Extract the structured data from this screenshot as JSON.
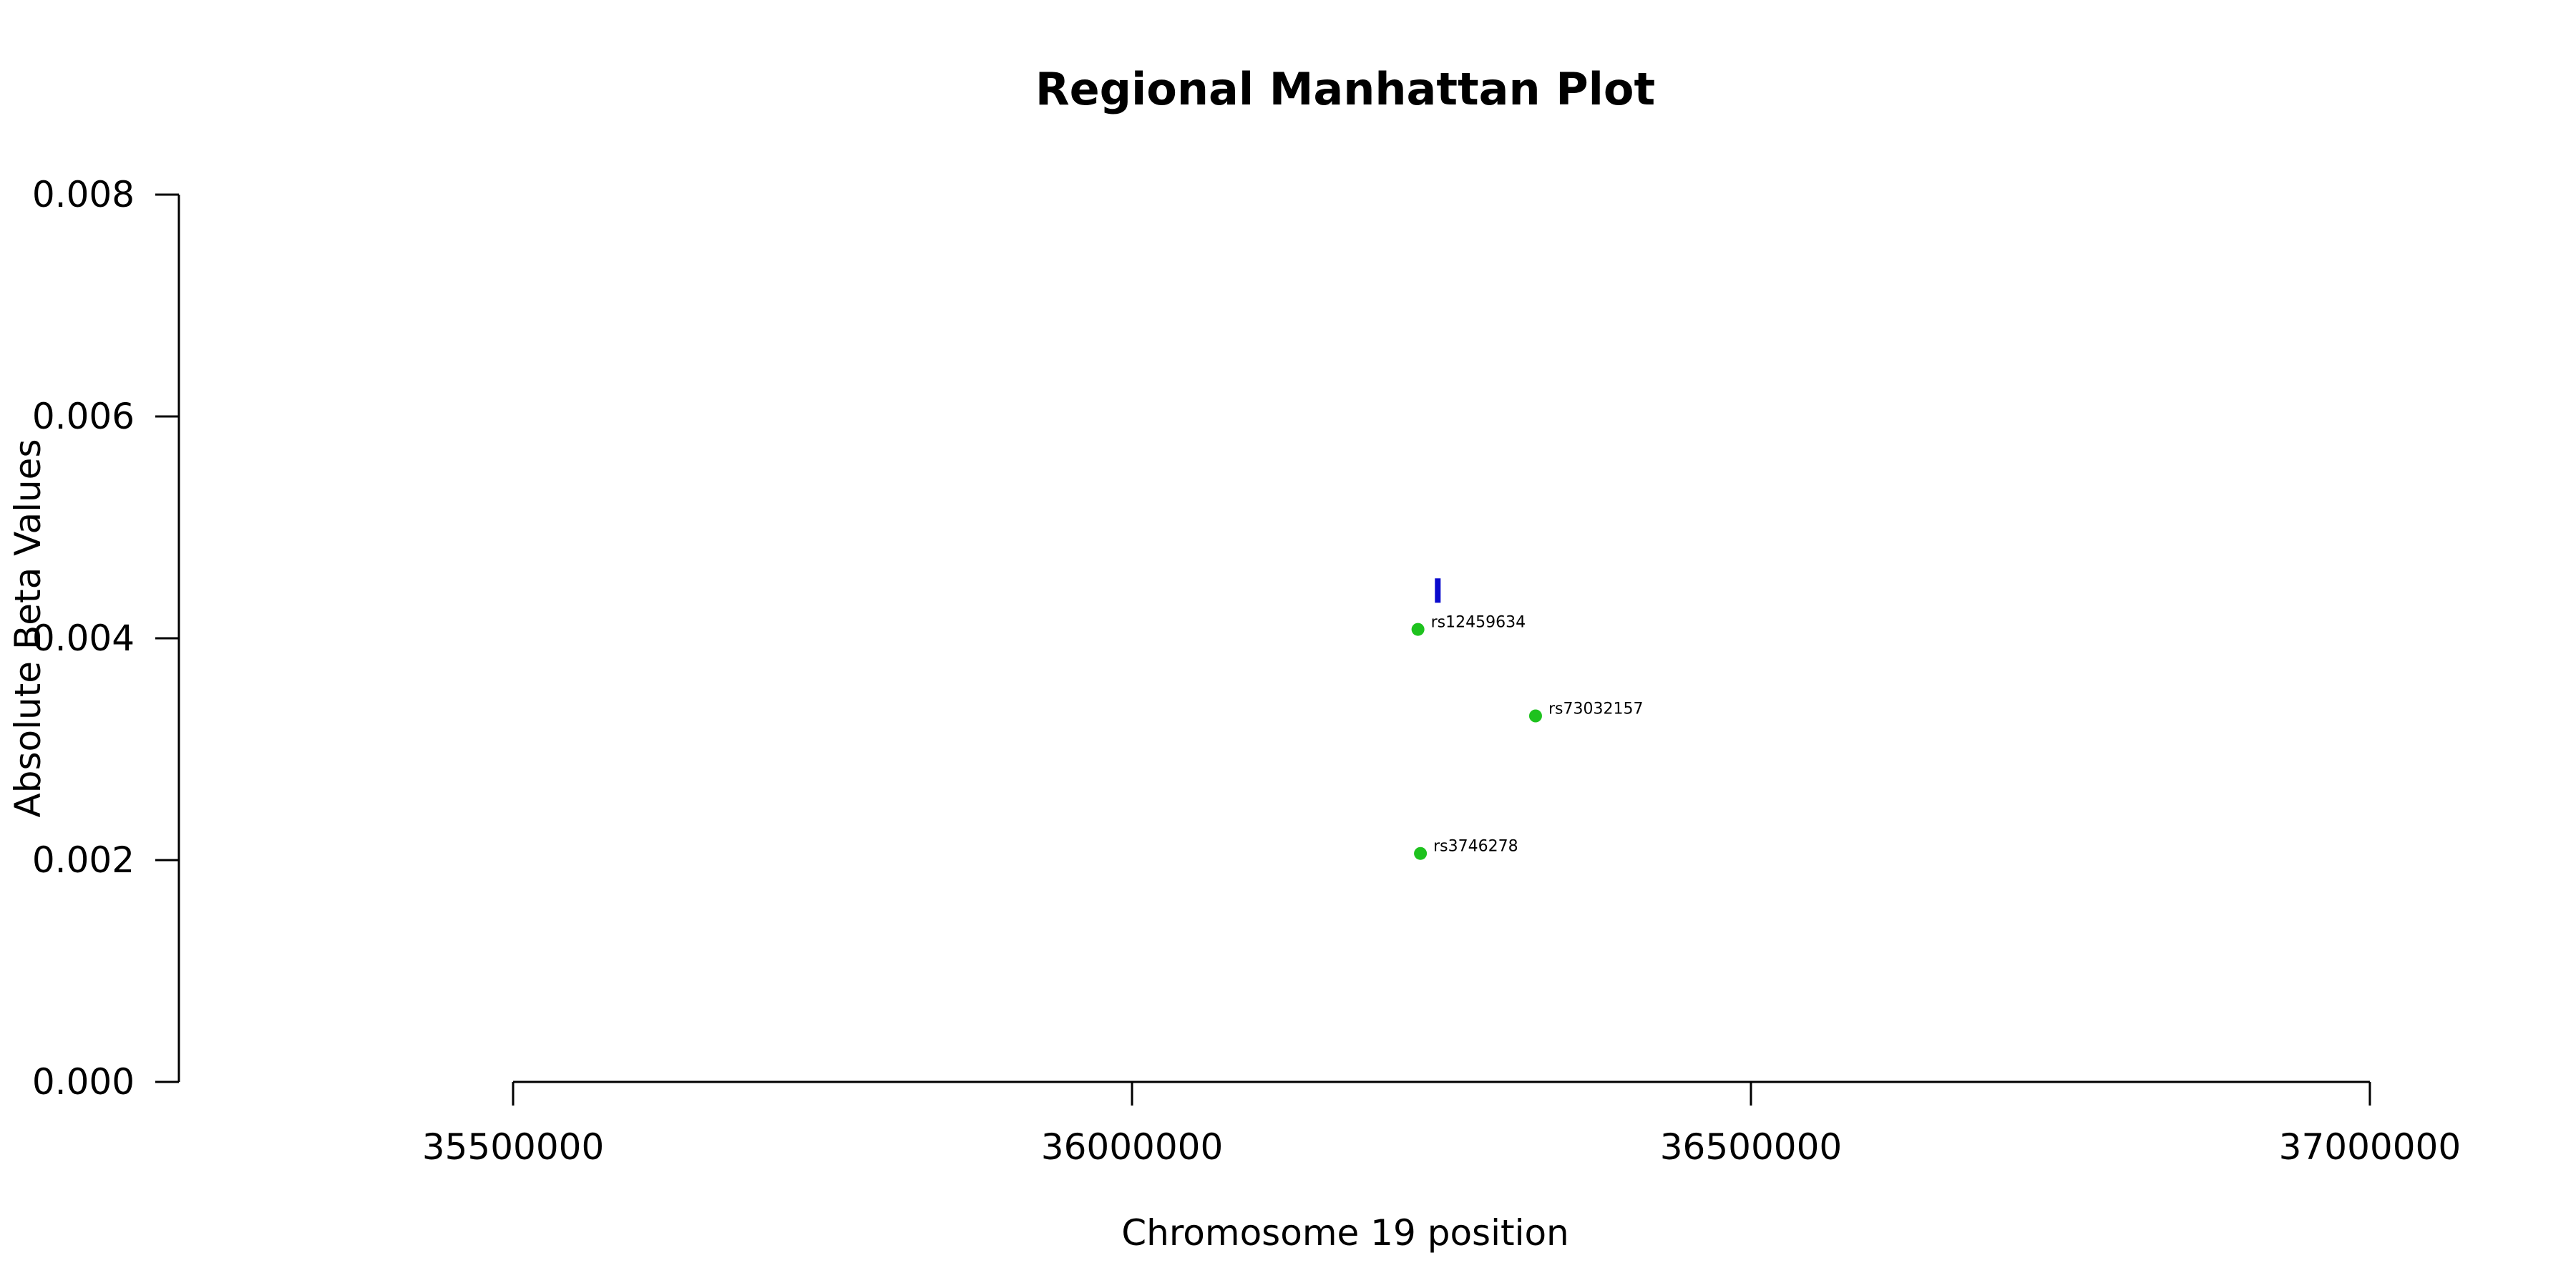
{
  "chart_data": {
    "type": "scatter",
    "title": "Regional Manhattan Plot",
    "xlabel": "Chromosome 19 position",
    "ylabel": "Absolute Beta Values",
    "xlim": [
      35230000,
      37170000
    ],
    "ylim": [
      0,
      0.008
    ],
    "x_ticks": [
      35500000,
      36000000,
      36500000,
      37000000
    ],
    "x_tick_labels": [
      "35500000",
      "36000000",
      "36500000",
      "37000000"
    ],
    "y_ticks": [
      0.0,
      0.002,
      0.004,
      0.006,
      0.008
    ],
    "y_tick_labels": [
      "0.000",
      "0.002",
      "0.004",
      "0.006",
      "0.008"
    ],
    "grid": false,
    "point_color": "#1ec21e",
    "marker_color": "#0a0acd",
    "points": [
      {
        "x": 36231000,
        "y": 0.00408,
        "label": "rs12459634"
      },
      {
        "x": 36326000,
        "y": 0.0033,
        "label": "rs73032157"
      },
      {
        "x": 36233000,
        "y": 0.00206,
        "label": "rs3746278"
      }
    ],
    "marker": {
      "x": 36247000,
      "y_low": 0.00432,
      "y_high": 0.00454
    }
  }
}
